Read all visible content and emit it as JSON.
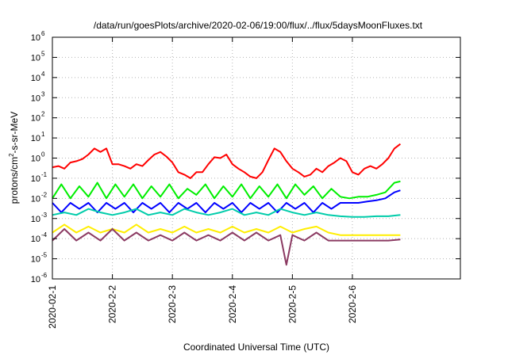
{
  "chart_data": {
    "type": "line",
    "title": "/data/run/goesPlots/archive/2020-02-06/19:00/flux/../flux/5daysMoonFluxes.txt",
    "xlabel": "Coordinated Universal Time (UTC)",
    "ylabel_parts": {
      "base": "protons/cm",
      "sup": "2",
      "rest": "-s-sr-MeV"
    },
    "yscale": "log",
    "ylim": [
      1e-06,
      1000000
    ],
    "xlim": [
      0,
      6.8
    ],
    "x_units": "days since 2020-02-01 00:00 UTC",
    "grid": true,
    "x_ticks": [
      {
        "value": 0,
        "label": "2020-02-1"
      },
      {
        "value": 1,
        "label": "2020-2-2"
      },
      {
        "value": 2,
        "label": "2020-2-3"
      },
      {
        "value": 3,
        "label": "2020-2-4"
      },
      {
        "value": 4,
        "label": "2020-2-5"
      },
      {
        "value": 5,
        "label": "2020-2-6"
      }
    ],
    "y_ticks": [
      {
        "value": 1e-06,
        "base": "10",
        "exp": "-6"
      },
      {
        "value": 1e-05,
        "base": "10",
        "exp": "-5"
      },
      {
        "value": 0.0001,
        "base": "10",
        "exp": "-4"
      },
      {
        "value": 0.001,
        "base": "10",
        "exp": "-3"
      },
      {
        "value": 0.01,
        "base": "10",
        "exp": "-2"
      },
      {
        "value": 0.1,
        "base": "10",
        "exp": "-1"
      },
      {
        "value": 1,
        "base": "10",
        "exp": "0"
      },
      {
        "value": 10,
        "base": "10",
        "exp": "1"
      },
      {
        "value": 100,
        "base": "10",
        "exp": "2"
      },
      {
        "value": 1000,
        "base": "10",
        "exp": "3"
      },
      {
        "value": 10000,
        "base": "10",
        "exp": "4"
      },
      {
        "value": 100000,
        "base": "10",
        "exp": "5"
      },
      {
        "value": 1000000,
        "base": "10",
        "exp": "6"
      }
    ],
    "series": [
      {
        "color": "#ff0000",
        "x": [
          0,
          0.1,
          0.2,
          0.3,
          0.4,
          0.5,
          0.6,
          0.7,
          0.8,
          0.9,
          1.0,
          1.1,
          1.2,
          1.3,
          1.4,
          1.5,
          1.6,
          1.7,
          1.8,
          1.9,
          2.0,
          2.1,
          2.2,
          2.3,
          2.4,
          2.5,
          2.6,
          2.7,
          2.8,
          2.9,
          3.0,
          3.1,
          3.2,
          3.3,
          3.4,
          3.5,
          3.6,
          3.7,
          3.8,
          3.9,
          4.0,
          4.1,
          4.2,
          4.3,
          4.4,
          4.5,
          4.6,
          4.7,
          4.8,
          4.9,
          5.0,
          5.1,
          5.2,
          5.3,
          5.4,
          5.5,
          5.6,
          5.7,
          5.8
        ],
        "values": [
          0.35,
          0.4,
          0.3,
          0.6,
          0.7,
          0.9,
          1.5,
          3,
          2,
          3,
          0.5,
          0.5,
          0.4,
          0.3,
          0.5,
          0.4,
          0.8,
          1.5,
          2,
          1.2,
          0.6,
          0.2,
          0.15,
          0.1,
          0.2,
          0.2,
          0.5,
          1.1,
          1.0,
          1.5,
          0.5,
          0.3,
          0.2,
          0.12,
          0.1,
          0.2,
          0.8,
          3,
          2,
          0.7,
          0.3,
          0.2,
          0.12,
          0.15,
          0.3,
          0.2,
          0.4,
          0.6,
          1.0,
          0.7,
          0.2,
          0.15,
          0.3,
          0.4,
          0.3,
          0.5,
          1.0,
          3,
          5
        ]
      },
      {
        "color": "#00ee00",
        "x": [
          0,
          0.15,
          0.3,
          0.45,
          0.6,
          0.75,
          0.9,
          1.05,
          1.2,
          1.35,
          1.5,
          1.65,
          1.8,
          1.95,
          2.1,
          2.25,
          2.4,
          2.55,
          2.7,
          2.85,
          3.0,
          3.15,
          3.3,
          3.45,
          3.6,
          3.75,
          3.9,
          4.05,
          4.2,
          4.35,
          4.5,
          4.65,
          4.8,
          4.95,
          5.1,
          5.25,
          5.4,
          5.55,
          5.7,
          5.8
        ],
        "values": [
          0.01,
          0.05,
          0.01,
          0.04,
          0.012,
          0.06,
          0.01,
          0.05,
          0.012,
          0.05,
          0.01,
          0.04,
          0.012,
          0.05,
          0.01,
          0.03,
          0.015,
          0.05,
          0.01,
          0.04,
          0.012,
          0.05,
          0.01,
          0.04,
          0.012,
          0.05,
          0.01,
          0.05,
          0.015,
          0.04,
          0.01,
          0.03,
          0.012,
          0.01,
          0.012,
          0.012,
          0.015,
          0.02,
          0.06,
          0.07
        ]
      },
      {
        "color": "#0000ff",
        "x": [
          0,
          0.15,
          0.3,
          0.45,
          0.6,
          0.75,
          0.9,
          1.05,
          1.2,
          1.35,
          1.5,
          1.65,
          1.8,
          1.95,
          2.1,
          2.25,
          2.4,
          2.55,
          2.7,
          2.85,
          3.0,
          3.15,
          3.3,
          3.45,
          3.6,
          3.75,
          3.9,
          4.05,
          4.2,
          4.35,
          4.5,
          4.65,
          4.8,
          4.95,
          5.1,
          5.25,
          5.4,
          5.55,
          5.7,
          5.8
        ],
        "values": [
          0.006,
          0.002,
          0.006,
          0.003,
          0.006,
          0.002,
          0.006,
          0.003,
          0.006,
          0.002,
          0.006,
          0.003,
          0.006,
          0.002,
          0.006,
          0.003,
          0.006,
          0.002,
          0.006,
          0.003,
          0.006,
          0.002,
          0.006,
          0.003,
          0.006,
          0.002,
          0.006,
          0.003,
          0.006,
          0.002,
          0.006,
          0.003,
          0.006,
          0.006,
          0.006,
          0.007,
          0.008,
          0.01,
          0.02,
          0.025
        ]
      },
      {
        "color": "#00ccaa",
        "x": [
          0,
          0.2,
          0.4,
          0.6,
          0.8,
          1.0,
          1.2,
          1.4,
          1.6,
          1.8,
          2.0,
          2.2,
          2.4,
          2.6,
          2.8,
          3.0,
          3.2,
          3.4,
          3.6,
          3.8,
          4.0,
          4.2,
          4.4,
          4.6,
          4.8,
          5.0,
          5.2,
          5.4,
          5.6,
          5.8
        ],
        "values": [
          0.0015,
          0.002,
          0.0015,
          0.003,
          0.002,
          0.0015,
          0.002,
          0.003,
          0.0015,
          0.002,
          0.0015,
          0.003,
          0.002,
          0.0015,
          0.002,
          0.003,
          0.0015,
          0.002,
          0.0015,
          0.003,
          0.002,
          0.0015,
          0.002,
          0.0015,
          0.0013,
          0.0012,
          0.0012,
          0.0013,
          0.0013,
          0.0015
        ]
      },
      {
        "color": "#ffee00",
        "x": [
          0,
          0.2,
          0.4,
          0.6,
          0.8,
          1.0,
          1.2,
          1.4,
          1.6,
          1.8,
          2.0,
          2.2,
          2.4,
          2.6,
          2.8,
          3.0,
          3.2,
          3.4,
          3.6,
          3.8,
          4.0,
          4.2,
          4.4,
          4.6,
          4.8,
          5.0,
          5.2,
          5.4,
          5.6,
          5.8
        ],
        "values": [
          0.0002,
          0.0005,
          0.0002,
          0.0004,
          0.0002,
          0.0003,
          0.0002,
          0.0005,
          0.0002,
          0.0003,
          0.0002,
          0.0004,
          0.0002,
          0.0003,
          0.0002,
          0.0004,
          0.0002,
          0.0003,
          0.0002,
          0.0004,
          0.0002,
          0.0003,
          0.0004,
          0.0002,
          0.00015,
          0.00015,
          0.00015,
          0.00015,
          0.00015,
          0.00015
        ]
      },
      {
        "color": "#8b3a62",
        "x": [
          0,
          0.2,
          0.4,
          0.6,
          0.8,
          1.0,
          1.2,
          1.4,
          1.6,
          1.8,
          2.0,
          2.2,
          2.4,
          2.6,
          2.8,
          3.0,
          3.2,
          3.4,
          3.6,
          3.8,
          3.9,
          4.0,
          4.2,
          4.4,
          4.6,
          4.8,
          5.0,
          5.2,
          5.4,
          5.6,
          5.8
        ],
        "values": [
          8e-05,
          0.0003,
          8e-05,
          0.0002,
          8e-05,
          0.0003,
          8e-05,
          0.0002,
          8e-05,
          0.00015,
          8e-05,
          0.0002,
          8e-05,
          0.00015,
          8e-05,
          0.0002,
          8e-05,
          0.0002,
          8e-05,
          0.00015,
          5e-06,
          0.00015,
          8e-05,
          0.0002,
          8e-05,
          8e-05,
          8e-05,
          8e-05,
          8e-05,
          8e-05,
          9e-05
        ]
      }
    ]
  }
}
